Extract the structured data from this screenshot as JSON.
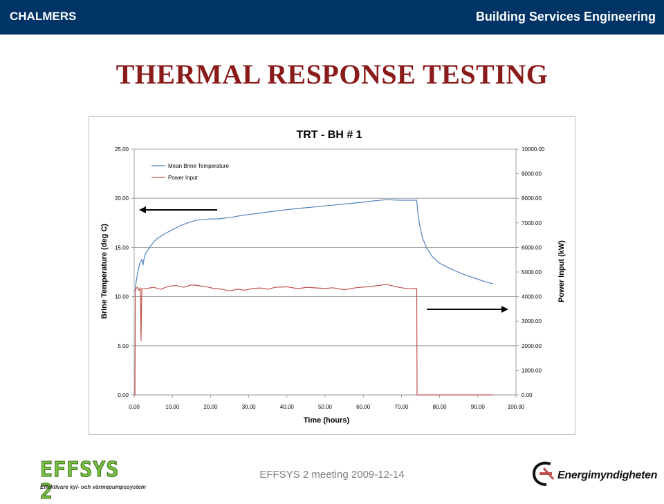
{
  "header": {
    "left_label": "CHALMERS",
    "right_label": "Building Services Engineering"
  },
  "slide_title": "THERMAL RESPONSE TESTING",
  "footer_text": "EFFSYS 2 meeting 2009-12-14",
  "logos": {
    "effsys": {
      "word": "EFFSYS 2",
      "subtitle": "Effektivare kyl- och värmepumpssystem"
    },
    "energi": {
      "word": "Energimyndigheten"
    }
  },
  "colors": {
    "header_bg": "#003366",
    "title": "#8b1a1a",
    "brine_series": "#4f81bd",
    "power_series": "#c0504d"
  },
  "chart_data": {
    "type": "line",
    "title": "TRT - BH # 1",
    "xlabel": "Time (hours)",
    "ylabel_left": "Brine Temperature (deg C)",
    "ylabel_right": "Power Input (kW)",
    "xlim": [
      0,
      100
    ],
    "ylim_left": [
      0,
      25
    ],
    "ylim_right": [
      0,
      10000
    ],
    "x_ticks": [
      "0.00",
      "10.00",
      "20.00",
      "30.00",
      "40.00",
      "50.00",
      "60.00",
      "70.00",
      "80.00",
      "90.00",
      "100.00"
    ],
    "y_left_ticks": [
      "0.00",
      "5.00",
      "10.00",
      "15.00",
      "20.00",
      "25.00"
    ],
    "y_right_ticks": [
      "0.00",
      "1000.00",
      "2000.00",
      "3000.00",
      "4000.00",
      "5000.00",
      "6000.00",
      "7000.00",
      "8000.00",
      "9000.00",
      "10000.00"
    ],
    "grid": "horizontal",
    "legend_position": "top-left",
    "series": [
      {
        "name": "Mean Brine Temperature",
        "axis": "left",
        "points": [
          [
            0.2,
            10.5
          ],
          [
            0.5,
            11.5
          ],
          [
            1,
            12.6
          ],
          [
            1.5,
            13.4
          ],
          [
            2,
            13.8
          ],
          [
            2.3,
            13.2
          ],
          [
            2.6,
            13.9
          ],
          [
            3,
            14.4
          ],
          [
            4,
            15.0
          ],
          [
            5,
            15.5
          ],
          [
            6,
            15.9
          ],
          [
            8,
            16.4
          ],
          [
            10,
            16.8
          ],
          [
            12,
            17.2
          ],
          [
            14,
            17.5
          ],
          [
            16,
            17.75
          ],
          [
            18,
            17.85
          ],
          [
            20,
            17.9
          ],
          [
            22,
            17.9
          ],
          [
            24,
            18.0
          ],
          [
            26,
            18.1
          ],
          [
            28,
            18.25
          ],
          [
            30,
            18.35
          ],
          [
            33,
            18.5
          ],
          [
            36,
            18.65
          ],
          [
            40,
            18.85
          ],
          [
            44,
            19.0
          ],
          [
            48,
            19.15
          ],
          [
            52,
            19.3
          ],
          [
            56,
            19.45
          ],
          [
            60,
            19.6
          ],
          [
            63,
            19.75
          ],
          [
            66,
            19.85
          ],
          [
            70,
            19.8
          ],
          [
            72,
            19.8
          ],
          [
            74,
            19.8
          ],
          [
            74.3,
            18.5
          ],
          [
            74.8,
            17.2
          ],
          [
            75.5,
            16.0
          ],
          [
            76.5,
            15.0
          ],
          [
            78,
            14.1
          ],
          [
            80,
            13.4
          ],
          [
            83,
            12.8
          ],
          [
            86,
            12.3
          ],
          [
            89,
            11.9
          ],
          [
            92,
            11.5
          ],
          [
            94,
            11.3
          ]
        ]
      },
      {
        "name": "Power Input",
        "axis": "right",
        "points": [
          [
            0,
            0
          ],
          [
            0.2,
            0
          ],
          [
            0.3,
            4300
          ],
          [
            0.8,
            4380
          ],
          [
            1.2,
            4250
          ],
          [
            1.4,
            4300
          ],
          [
            1.6,
            4360
          ],
          [
            1.8,
            2200
          ],
          [
            2.0,
            4320
          ],
          [
            3,
            4320
          ],
          [
            5,
            4380
          ],
          [
            7,
            4300
          ],
          [
            9,
            4420
          ],
          [
            11,
            4450
          ],
          [
            13,
            4380
          ],
          [
            15,
            4480
          ],
          [
            17,
            4440
          ],
          [
            19,
            4400
          ],
          [
            21,
            4330
          ],
          [
            23,
            4300
          ],
          [
            25,
            4230
          ],
          [
            27,
            4300
          ],
          [
            29,
            4260
          ],
          [
            31,
            4330
          ],
          [
            33,
            4350
          ],
          [
            35,
            4300
          ],
          [
            37,
            4380
          ],
          [
            40,
            4400
          ],
          [
            43,
            4320
          ],
          [
            45,
            4380
          ],
          [
            48,
            4350
          ],
          [
            50,
            4330
          ],
          [
            52,
            4360
          ],
          [
            55,
            4280
          ],
          [
            58,
            4360
          ],
          [
            61,
            4400
          ],
          [
            64,
            4450
          ],
          [
            66,
            4500
          ],
          [
            68,
            4420
          ],
          [
            70,
            4360
          ],
          [
            72,
            4320
          ],
          [
            74,
            4330
          ],
          [
            74.1,
            0
          ],
          [
            80,
            0
          ],
          [
            90,
            0
          ],
          [
            94,
            0
          ]
        ]
      }
    ]
  }
}
